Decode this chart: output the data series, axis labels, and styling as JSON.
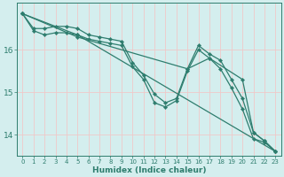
{
  "xlabel": "Humidex (Indice chaleur)",
  "bg_color": "#d4eeee",
  "grid_color": "#f0c8c8",
  "line_color": "#2e7d6e",
  "xlim": [
    -0.5,
    23.5
  ],
  "ylim": [
    13.5,
    17.1
  ],
  "yticks": [
    14,
    15,
    16
  ],
  "xticks": [
    0,
    1,
    2,
    3,
    4,
    5,
    6,
    7,
    8,
    9,
    10,
    11,
    12,
    13,
    14,
    15,
    16,
    17,
    18,
    19,
    20,
    21,
    22,
    23
  ],
  "lines": [
    {
      "x": [
        0,
        1,
        2,
        3,
        4,
        5,
        6,
        7,
        8,
        9,
        10,
        11,
        12,
        13,
        14,
        15,
        16,
        17,
        18,
        19,
        20,
        21,
        22,
        23
      ],
      "y": [
        16.85,
        16.5,
        16.5,
        16.55,
        16.55,
        16.5,
        16.35,
        16.3,
        16.25,
        16.2,
        15.7,
        15.4,
        14.95,
        14.75,
        14.85,
        15.55,
        16.1,
        15.9,
        15.75,
        15.3,
        14.85,
        14.05,
        13.85,
        13.6
      ]
    },
    {
      "x": [
        0,
        1,
        2,
        3,
        4,
        5,
        6,
        7,
        8,
        9,
        10,
        11,
        12,
        13,
        14,
        15,
        16,
        17,
        18,
        19,
        20,
        21,
        22,
        23
      ],
      "y": [
        16.85,
        16.45,
        16.35,
        16.4,
        16.4,
        16.35,
        16.25,
        16.2,
        16.15,
        16.1,
        15.6,
        15.3,
        14.75,
        14.65,
        14.8,
        15.5,
        16.0,
        15.8,
        15.55,
        15.1,
        14.6,
        13.9,
        13.82,
        13.6
      ]
    },
    {
      "x": [
        0,
        5,
        23
      ],
      "y": [
        16.85,
        16.35,
        13.6
      ]
    },
    {
      "x": [
        0,
        5,
        15,
        17,
        20,
        21,
        22,
        23
      ],
      "y": [
        16.85,
        16.3,
        15.55,
        15.8,
        15.3,
        14.05,
        13.85,
        13.6
      ]
    }
  ],
  "marker": "D",
  "markersize": 2.2,
  "linewidth": 0.9
}
